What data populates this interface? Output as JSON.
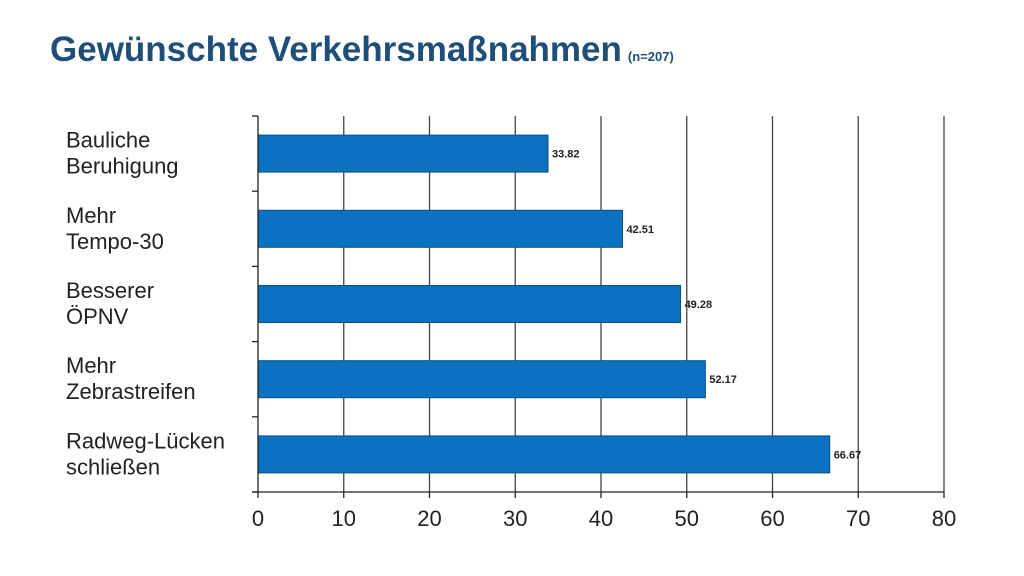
{
  "title": {
    "main": "Gewünschte Verkehrsmaßnahmen",
    "sub": "(n=207)"
  },
  "colors": {
    "title": "#1f4e79",
    "bar": "#0a72c0",
    "bar_edge": "#0a4f86",
    "grid": "#444444",
    "axis": "#222222"
  },
  "chart_data": {
    "type": "bar",
    "orientation": "horizontal",
    "title": "Gewünschte Verkehrsmaßnahmen (n=207)",
    "categories": [
      [
        "Bauliche",
        "Beruhigung"
      ],
      [
        "Mehr",
        "Tempo-30"
      ],
      [
        "Besserer",
        "ÖPNV"
      ],
      [
        "Mehr",
        "Zebrastreifen"
      ],
      [
        "Radweg-Lücken",
        "schließen"
      ]
    ],
    "values": [
      33.82,
      42.51,
      49.28,
      52.17,
      66.67
    ],
    "value_labels": [
      "33.82",
      "42.51",
      "49.28",
      "52.17",
      "66.67"
    ],
    "xlim": [
      0,
      80
    ],
    "xticks": [
      0,
      10,
      20,
      30,
      40,
      50,
      60,
      70,
      80
    ],
    "xlabel": "",
    "ylabel": "",
    "grid": true,
    "legend": "none"
  }
}
